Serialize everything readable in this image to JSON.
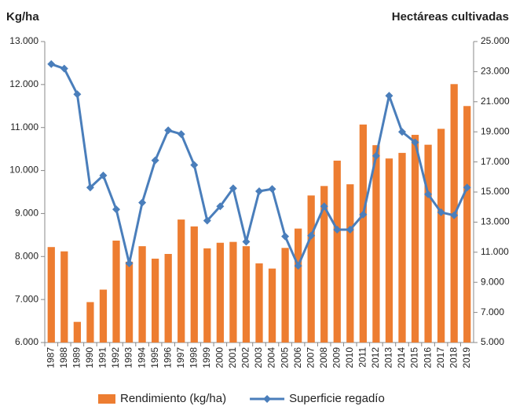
{
  "chart_data": {
    "type": "bar_line",
    "y_label": "Kg/ha",
    "y2_label": "Hectáreas cultivadas",
    "categories": [
      "1987",
      "1988",
      "1989",
      "1990",
      "1991",
      "1992",
      "1993",
      "1994",
      "1995",
      "1996",
      "1997",
      "1998",
      "1999",
      "2000",
      "2001",
      "2002",
      "2003",
      "2004",
      "2005",
      "2006",
      "2007",
      "2008",
      "2009",
      "2010",
      "2011",
      "2012",
      "2013",
      "2014",
      "2015",
      "2016",
      "2017",
      "2018",
      "2019"
    ],
    "series": [
      {
        "name": "Rendimiento (kg/ha)",
        "color": "#ed7d31",
        "kind": "bar",
        "values": [
          8220,
          8120,
          6480,
          6940,
          7230,
          8370,
          7880,
          8240,
          7950,
          8060,
          8860,
          8700,
          8190,
          8320,
          8340,
          8240,
          7840,
          7720,
          8200,
          8650,
          9420,
          9640,
          10230,
          9680,
          11070,
          10590,
          10280,
          10410,
          10830,
          10600,
          10970,
          12010,
          11500
        ]
      },
      {
        "name": "Superficie regadío",
        "color": "#4a7ebb",
        "kind": "line",
        "axis": "y2",
        "values": [
          23500,
          23200,
          21500,
          15300,
          16100,
          13850,
          10260,
          14300,
          17100,
          19100,
          18850,
          16800,
          13100,
          14050,
          15250,
          11700,
          15050,
          15200,
          12050,
          10100,
          12100,
          14050,
          12500,
          12500,
          13500,
          17400,
          21400,
          19000,
          18300,
          14850,
          13650,
          13450,
          15300
        ]
      }
    ],
    "ylim": [
      6000,
      13000
    ],
    "yticks": [
      {
        "value": 6000,
        "label": "6.000"
      },
      {
        "value": 7000,
        "label": "7.000"
      },
      {
        "value": 8000,
        "label": "8.000"
      },
      {
        "value": 9000,
        "label": "9.000"
      },
      {
        "value": 10000,
        "label": "10.000"
      },
      {
        "value": 11000,
        "label": "11.000"
      },
      {
        "value": 12000,
        "label": "12.000"
      },
      {
        "value": 13000,
        "label": "13.000"
      }
    ],
    "y2lim": [
      5000,
      25000
    ],
    "y2ticks": [
      {
        "value": 5000,
        "label": "5.000"
      },
      {
        "value": 7000,
        "label": "7.000"
      },
      {
        "value": 9000,
        "label": "9.000"
      },
      {
        "value": 11000,
        "label": "11.000"
      },
      {
        "value": 13000,
        "label": "13.000"
      },
      {
        "value": 15000,
        "label": "15.000"
      },
      {
        "value": 17000,
        "label": "17.000"
      },
      {
        "value": 19000,
        "label": "19.000"
      },
      {
        "value": 21000,
        "label": "21.000"
      },
      {
        "value": 23000,
        "label": "23.000"
      },
      {
        "value": 25000,
        "label": "25.000"
      }
    ],
    "grid": false,
    "legend": "bottom"
  }
}
